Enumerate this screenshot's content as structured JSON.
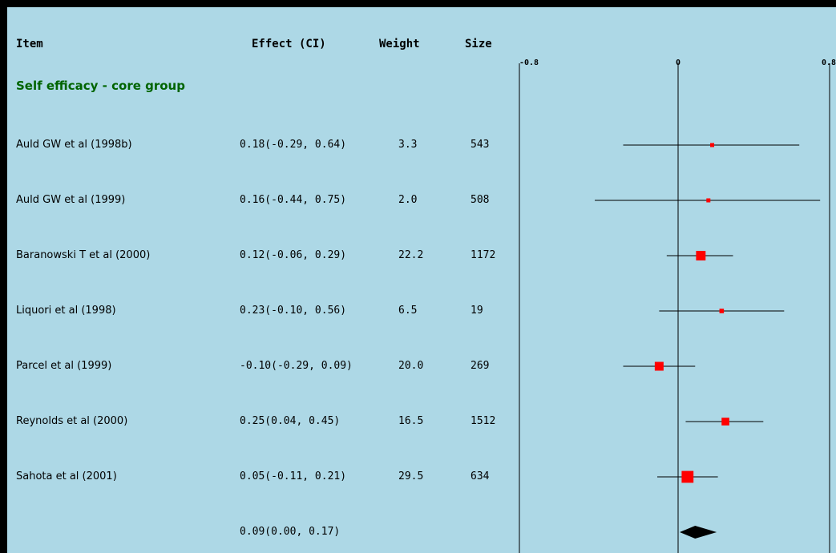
{
  "headers": {
    "item": "Item",
    "effect": "Effect (CI)",
    "weight": "Weight",
    "size": "Size"
  },
  "group_title": "Self efficacy - core group",
  "colors": {
    "background": "#add8e6",
    "frame": "#000000",
    "group_title": "#006400",
    "point": "#ff0000",
    "summary": "#000000"
  },
  "chart_data": {
    "type": "forest",
    "x_ticks": [
      "-0.8",
      "0",
      "0.8"
    ],
    "xlim": [
      -0.8,
      0.8
    ],
    "studies": [
      {
        "item": "Auld GW et al (1998b)",
        "effect_label": "0.18(-0.29, 0.64)",
        "effect": 0.18,
        "ci": [
          -0.29,
          0.64
        ],
        "weight": "3.3",
        "size": "543"
      },
      {
        "item": "Auld GW et al (1999)",
        "effect_label": "0.16(-0.44, 0.75)",
        "effect": 0.16,
        "ci": [
          -0.44,
          0.75
        ],
        "weight": "2.0",
        "size": "508"
      },
      {
        "item": "Baranowski T et al (2000)",
        "effect_label": "0.12(-0.06, 0.29)",
        "effect": 0.12,
        "ci": [
          -0.06,
          0.29
        ],
        "weight": "22.2",
        "size": "1172"
      },
      {
        "item": "Liquori et al (1998)",
        "effect_label": "0.23(-0.10, 0.56)",
        "effect": 0.23,
        "ci": [
          -0.1,
          0.56
        ],
        "weight": "6.5",
        "size": "19"
      },
      {
        "item": "Parcel et al (1999)",
        "effect_label": "-0.10(-0.29, 0.09)",
        "effect": -0.1,
        "ci": [
          -0.29,
          0.09
        ],
        "weight": "20.0",
        "size": "269"
      },
      {
        "item": "Reynolds et al (2000)",
        "effect_label": "0.25(0.04, 0.45)",
        "effect": 0.25,
        "ci": [
          0.04,
          0.45
        ],
        "weight": "16.5",
        "size": "1512"
      },
      {
        "item": "Sahota et al (2001)",
        "effect_label": "0.05(-0.11, 0.21)",
        "effect": 0.05,
        "ci": [
          -0.11,
          0.21
        ],
        "weight": "29.5",
        "size": "634"
      }
    ],
    "summary": {
      "effect_label": "0.09(0.00, 0.17)",
      "effect": 0.09,
      "ci": [
        0.0,
        0.17
      ]
    }
  }
}
